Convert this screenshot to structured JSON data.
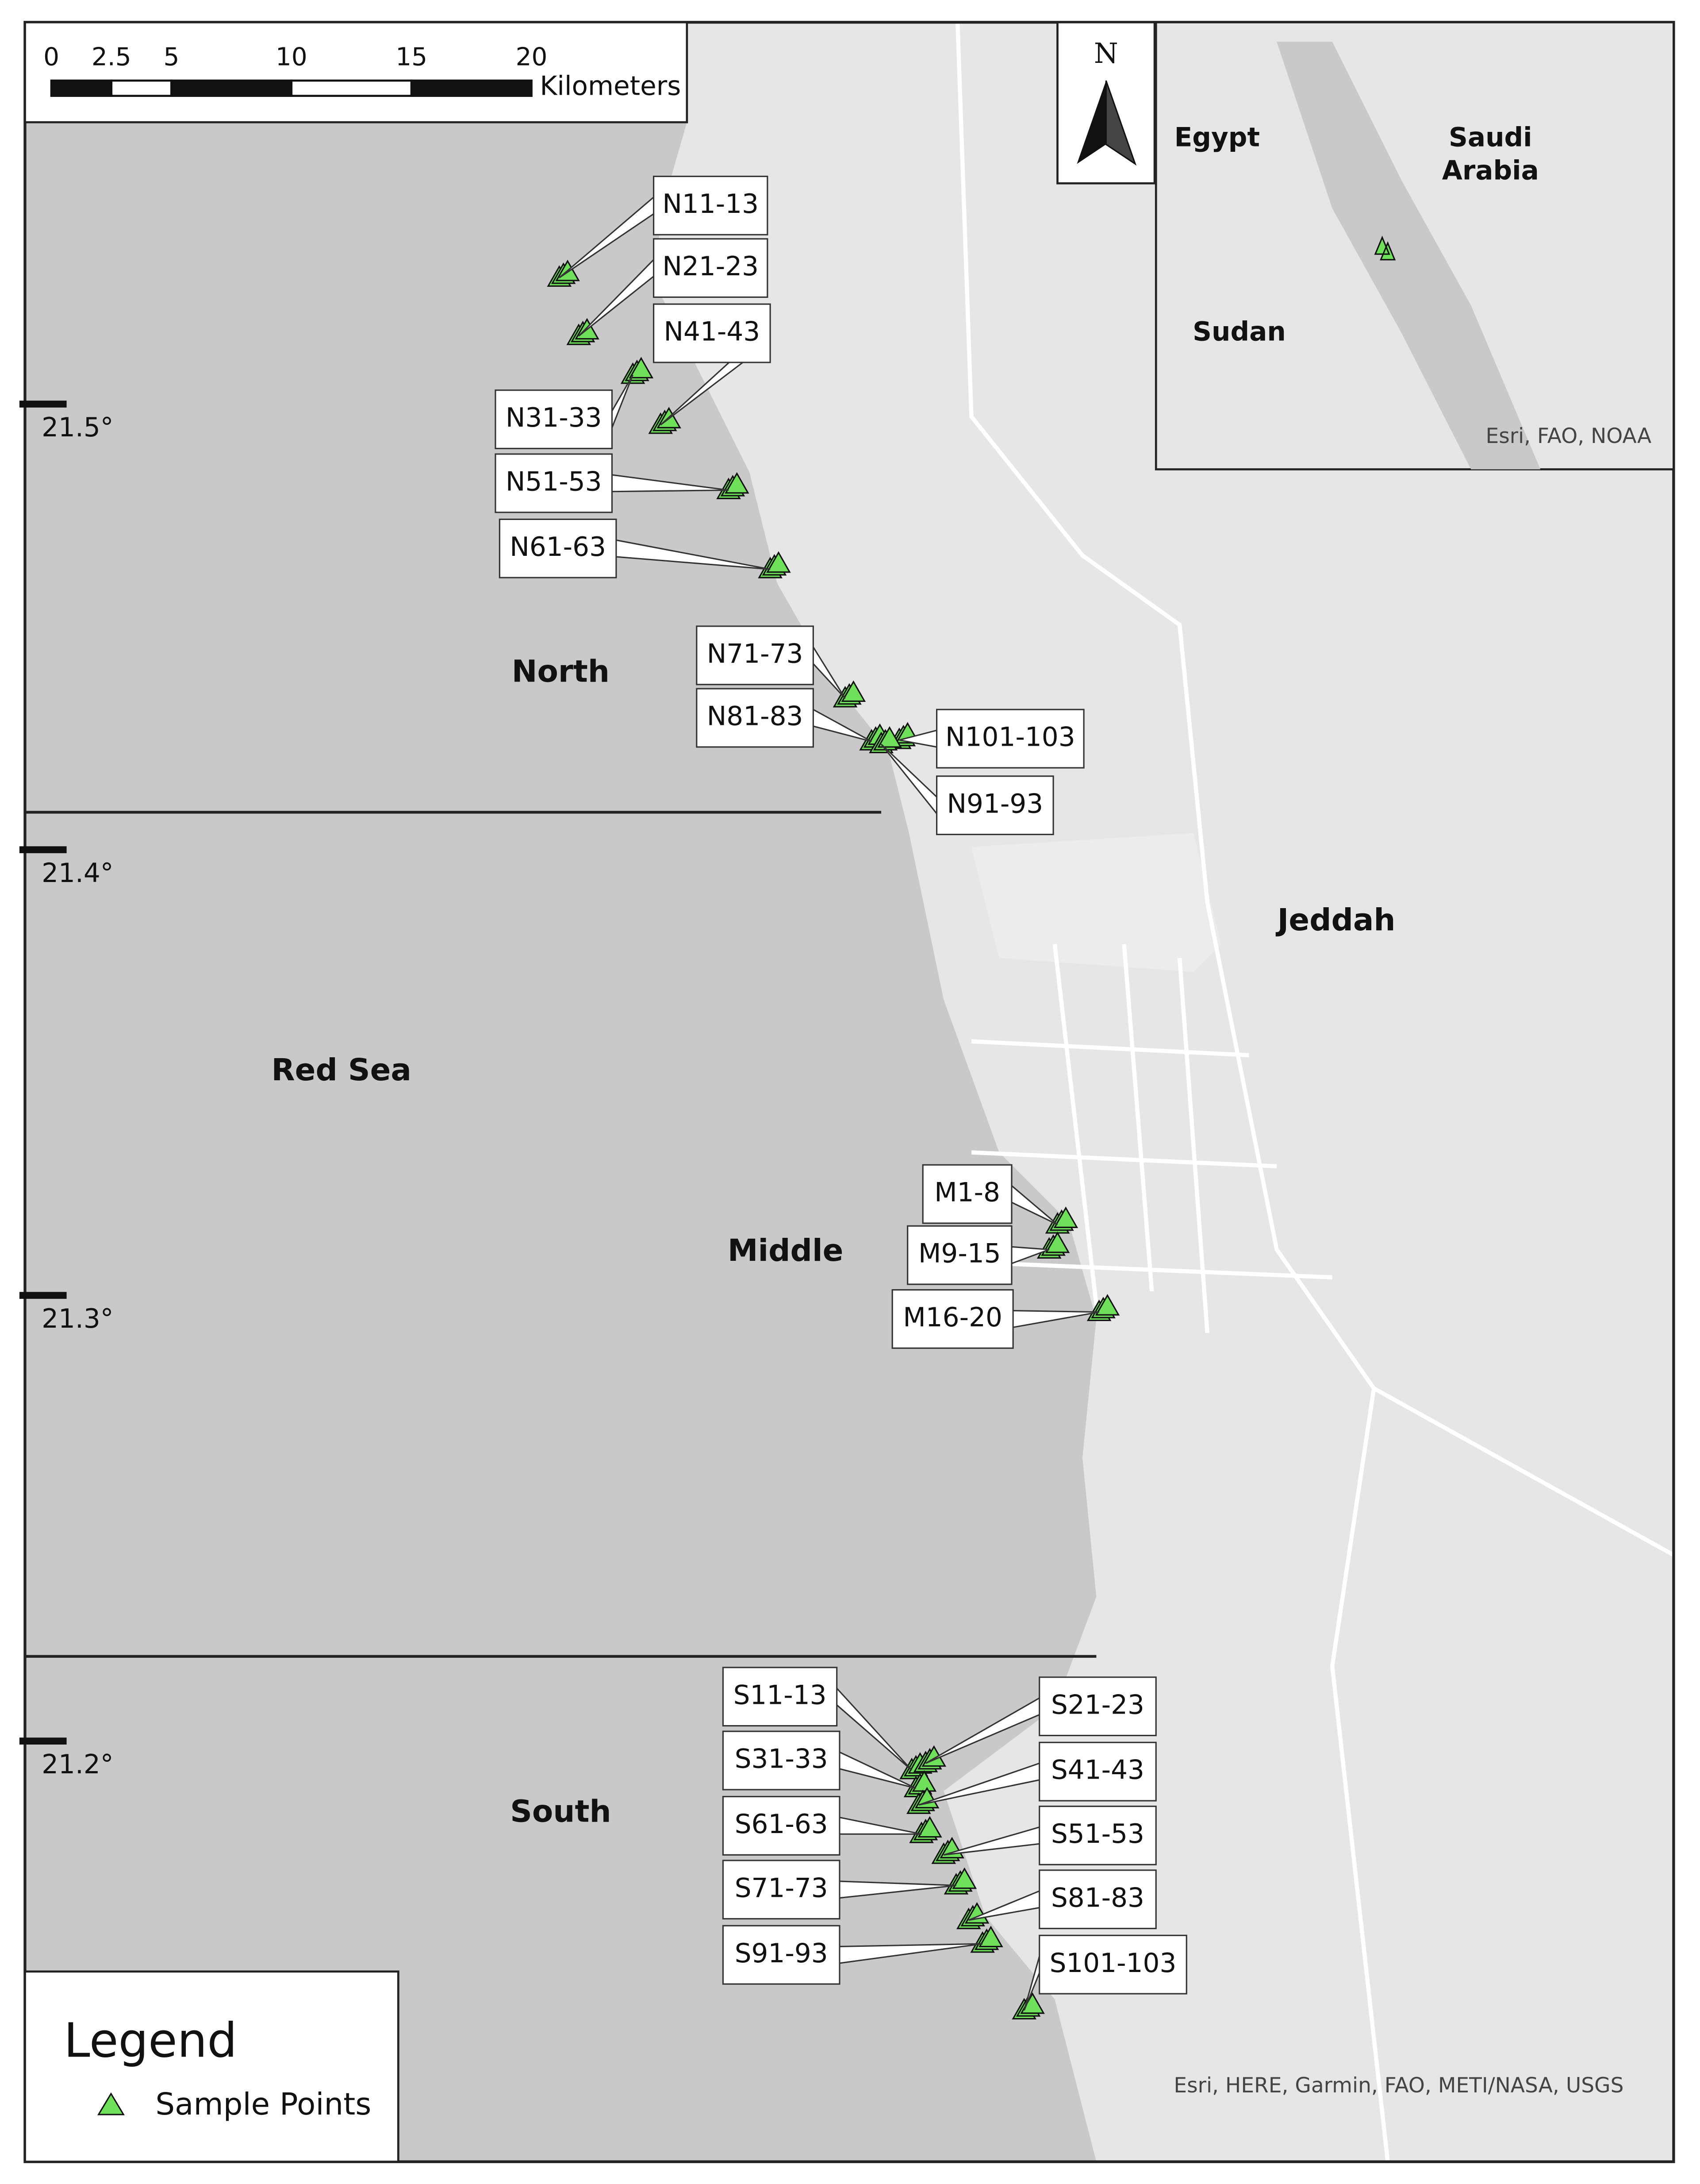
{
  "scale_bar": {
    "ticks": [
      0,
      2.5,
      5,
      10,
      15,
      20
    ],
    "unit": "Kilometers"
  },
  "north_arrow": "N",
  "inset": {
    "labels": [
      [
        "Egypt"
      ],
      [
        "Saudi",
        "Arabia"
      ],
      [
        "Sudan"
      ]
    ],
    "attribution": "Esri, FAO, NOAA"
  },
  "latitude_labels": [
    "21.5°",
    "21.4°",
    "21.3°",
    "21.2°"
  ],
  "region_labels": [
    "North",
    "Middle",
    "South",
    "Red Sea",
    "Jeddah"
  ],
  "sample_points": [
    "N11-13",
    "N21-23",
    "N41-43",
    "N31-33",
    "N51-53",
    "N61-63",
    "N71-73",
    "N81-83",
    "N101-103",
    "N91-93",
    "M1-8",
    "M9-15",
    "M16-20",
    "S11-13",
    "S21-23",
    "S31-33",
    "S41-43",
    "S61-63",
    "S51-53",
    "S71-73",
    "S81-83",
    "S91-93",
    "S101-103"
  ],
  "legend": {
    "title": "Legend",
    "item": "Sample Points"
  },
  "attribution": "Esri, HERE, Garmin, FAO, METI/NASA, USGS"
}
